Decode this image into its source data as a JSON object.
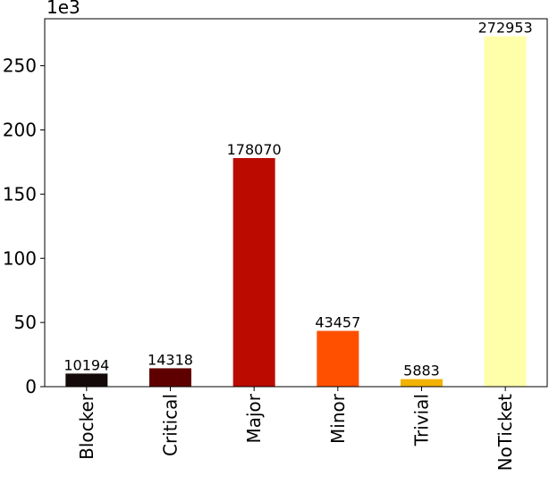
{
  "chart_data": {
    "type": "bar",
    "categories": [
      "Blocker",
      "Critical",
      "Major",
      "Minor",
      "Trivial",
      "NoTicket"
    ],
    "values": [
      10194,
      14318,
      178070,
      43457,
      5883,
      272953
    ],
    "data_labels": [
      "10194",
      "14318",
      "178070",
      "43457",
      "5883",
      "272953"
    ],
    "colors": [
      "#140a0a",
      "#5f0000",
      "#bb0a00",
      "#ff5000",
      "#f2b200",
      "#ffffaa"
    ],
    "y_axis": {
      "scale_factor": 1000,
      "offset_text": "1e3",
      "ylim": [
        0,
        286600
      ],
      "ticks": [
        0,
        50,
        100,
        150,
        200,
        250
      ],
      "tick_labels": [
        "0",
        "50",
        "100",
        "150",
        "200",
        "250"
      ]
    },
    "title": "",
    "xlabel": "",
    "ylabel": "",
    "grid": false,
    "legend": false
  }
}
